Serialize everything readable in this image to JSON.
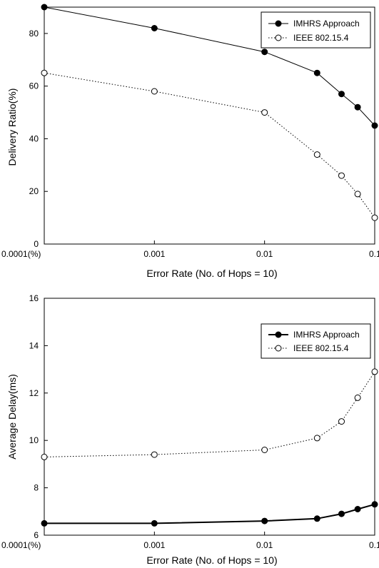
{
  "chart_data": [
    {
      "type": "line",
      "xlabel": "Error Rate (No. of Hops = 10)",
      "ylabel": "Delivery Ratio(%)",
      "x": [
        0.0001,
        0.001,
        0.01,
        0.03,
        0.05,
        0.07,
        0.1
      ],
      "x_scale": "log",
      "xlim": [
        0.0001,
        0.1
      ],
      "xtick_labels": [
        "0.0001(%)",
        "0.001",
        "0.01",
        "0.1"
      ],
      "ylim": [
        0,
        90
      ],
      "yticks": [
        0,
        20,
        40,
        60,
        80
      ],
      "grid": false,
      "legend_position": "top-right",
      "series": [
        {
          "name": "IMHRS Approach",
          "marker": "filled-circle",
          "line": "solid",
          "values": [
            90,
            82,
            73,
            65,
            57,
            52,
            45
          ]
        },
        {
          "name": "IEEE 802.15.4",
          "marker": "open-circle",
          "line": "dotted",
          "values": [
            65,
            58,
            50,
            34,
            26,
            19,
            10
          ]
        }
      ]
    },
    {
      "type": "line",
      "xlabel": "Error Rate (No. of Hops = 10)",
      "ylabel": "Average Delay(ms)",
      "x": [
        0.0001,
        0.001,
        0.01,
        0.03,
        0.05,
        0.07,
        0.1
      ],
      "x_scale": "log",
      "xlim": [
        0.0001,
        0.1
      ],
      "xtick_labels": [
        "0.0001(%)",
        "0.001",
        "0.01",
        "0.1"
      ],
      "ylim": [
        6,
        16
      ],
      "yticks": [
        6,
        8,
        10,
        12,
        14,
        16
      ],
      "grid": false,
      "legend_position": "top-right",
      "series": [
        {
          "name": "IMHRS Approach",
          "marker": "filled-circle",
          "line": "solid",
          "values": [
            6.5,
            6.5,
            6.6,
            6.7,
            6.9,
            7.1,
            7.3
          ]
        },
        {
          "name": "IEEE 802.15.4",
          "marker": "open-circle",
          "line": "dotted",
          "values": [
            9.3,
            9.4,
            9.6,
            10.1,
            10.8,
            11.8,
            12.9
          ]
        }
      ]
    }
  ]
}
